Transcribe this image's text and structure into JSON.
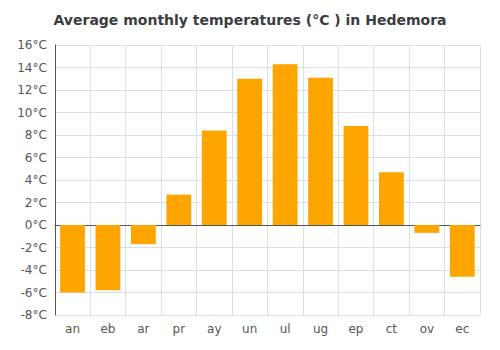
{
  "chart_data": {
    "type": "bar",
    "title": "Average monthly temperatures (°C ) in Hedemora",
    "categories": [
      "an",
      "eb",
      "ar",
      "pr",
      "ay",
      "un",
      "ul",
      "ug",
      "ep",
      "ct",
      "ov",
      "ec"
    ],
    "values": [
      -6.0,
      -5.8,
      -1.7,
      2.7,
      8.4,
      13.0,
      14.3,
      13.1,
      8.8,
      4.7,
      -0.7,
      -4.6
    ],
    "color": "#FFA500",
    "ylim": [
      -8,
      16
    ],
    "yticks": [
      {
        "value": -8,
        "label": "-8°C"
      },
      {
        "value": -6,
        "label": "-6°C"
      },
      {
        "value": -4,
        "label": "-4°C"
      },
      {
        "value": -2,
        "label": "-2°C"
      },
      {
        "value": 0,
        "label": "0°C"
      },
      {
        "value": 2,
        "label": "2°C"
      },
      {
        "value": 4,
        "label": "4°C"
      },
      {
        "value": 6,
        "label": "6°C"
      },
      {
        "value": 8,
        "label": "8°C"
      },
      {
        "value": 10,
        "label": "10°C"
      },
      {
        "value": 12,
        "label": "12°C"
      },
      {
        "value": 14,
        "label": "14°C"
      },
      {
        "value": 16,
        "label": "16°C"
      }
    ],
    "grid": true
  }
}
